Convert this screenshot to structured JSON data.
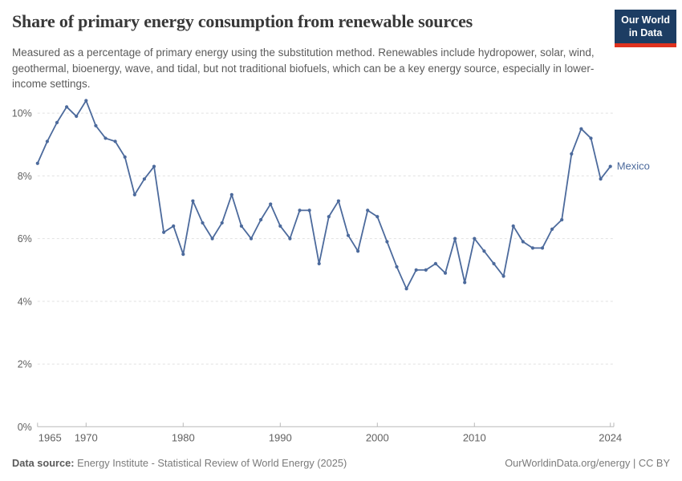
{
  "header": {
    "title": "Share of primary energy consumption from renewable sources",
    "subtitle": "Measured as a percentage of primary energy using the substitution method. Renewables include hydropower, solar, wind, geothermal, bioenergy, wave, and tidal, but not traditional biofuels, which can be a key energy source, especially in lower-income settings.",
    "logo": {
      "line1": "Our World",
      "line2": "in Data",
      "bg_color": "#1d3d63",
      "accent_color": "#e0321f"
    }
  },
  "chart_data": {
    "type": "line",
    "title": "Share of primary energy consumption from renewable sources",
    "xlabel": "",
    "ylabel": "",
    "xlim": [
      1965,
      2024
    ],
    "ylim": [
      0,
      10.6
    ],
    "yticks": [
      0,
      2,
      4,
      6,
      8,
      10
    ],
    "ytick_suffix": "%",
    "xticks": [
      1965,
      1970,
      1980,
      1990,
      2000,
      2010,
      2024
    ],
    "grid": "horizontal-dashed",
    "legend_position": "end-of-line-label",
    "series": [
      {
        "name": "Mexico",
        "color": "#4c6a9c",
        "x": [
          1965,
          1966,
          1967,
          1968,
          1969,
          1970,
          1971,
          1972,
          1973,
          1974,
          1975,
          1976,
          1977,
          1978,
          1979,
          1980,
          1981,
          1982,
          1983,
          1984,
          1985,
          1986,
          1987,
          1988,
          1989,
          1990,
          1991,
          1992,
          1993,
          1994,
          1995,
          1996,
          1997,
          1998,
          1999,
          2000,
          2001,
          2002,
          2003,
          2004,
          2005,
          2006,
          2007,
          2008,
          2009,
          2010,
          2011,
          2012,
          2013,
          2014,
          2015,
          2016,
          2017,
          2018,
          2019,
          2020,
          2021,
          2022,
          2023,
          2024
        ],
        "values": [
          8.4,
          9.1,
          9.7,
          10.2,
          9.9,
          10.4,
          9.6,
          9.2,
          9.1,
          8.6,
          7.4,
          7.9,
          8.3,
          6.2,
          6.4,
          5.5,
          7.2,
          6.5,
          6.0,
          6.5,
          7.4,
          6.4,
          6.0,
          6.6,
          7.1,
          6.4,
          6.0,
          6.9,
          6.9,
          5.2,
          6.7,
          7.2,
          6.1,
          5.6,
          6.9,
          6.7,
          5.9,
          5.1,
          4.4,
          5.0,
          5.0,
          5.2,
          4.9,
          6.0,
          4.6,
          6.0,
          5.6,
          5.2,
          4.8,
          6.4,
          5.9,
          5.7,
          5.7,
          6.3,
          6.6,
          8.7,
          9.5,
          9.2,
          7.9,
          8.3
        ]
      }
    ]
  },
  "footer": {
    "datasource_label": "Data source:",
    "datasource_text": "Energy Institute - Statistical Review of World Energy (2025)",
    "credit": "OurWorldinData.org/energy | CC BY"
  }
}
